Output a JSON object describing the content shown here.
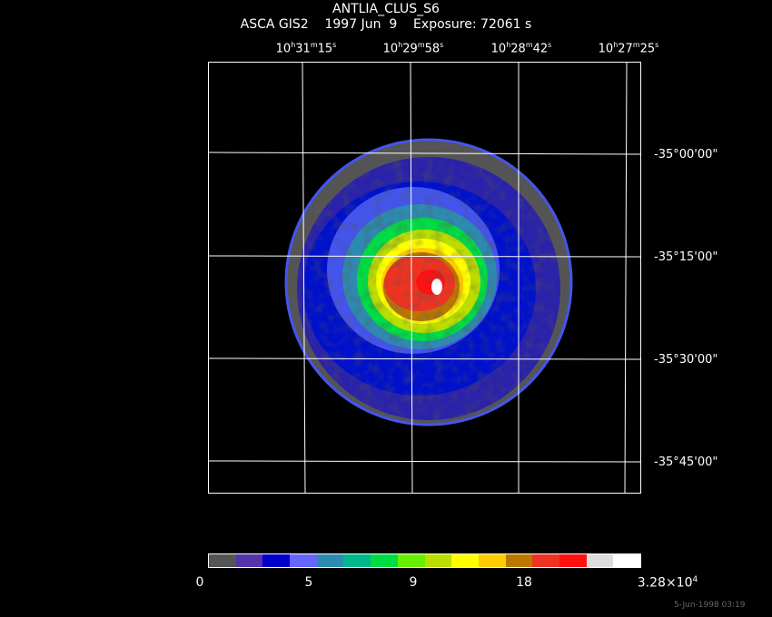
{
  "header": {
    "title": "ANTLIA_CLUS_S6",
    "subtitle": "ASCA GIS2    1997 Jun  9    Exposure: 72061 s"
  },
  "ra_labels": [
    {
      "h": "10",
      "m": "31",
      "s": "15"
    },
    {
      "h": "10",
      "m": "29",
      "s": "58"
    },
    {
      "h": "10",
      "m": "28",
      "s": "42"
    },
    {
      "h": "10",
      "m": "27",
      "s": "25"
    }
  ],
  "dec_labels": [
    "-35°00'00\"",
    "-35°15'00\"",
    "-35°30'00\"",
    "-35°45'00\""
  ],
  "colorbar": {
    "colors": [
      "#555555",
      "#5533aa",
      "#0000cc",
      "#6666ff",
      "#2e8bb0",
      "#00b88a",
      "#00dd44",
      "#66ee00",
      "#bbdd00",
      "#ffff00",
      "#ffcc00",
      "#bb7700",
      "#ee3322",
      "#ff1111",
      "#dddddd",
      "#ffffff"
    ],
    "labels": [
      "0",
      "5",
      "9",
      "18"
    ],
    "max_mantissa": "3.28",
    "max_times": "×10",
    "max_exp": "4"
  },
  "footer": {
    "timestamp": "5-Jun-1998 03:19"
  }
}
